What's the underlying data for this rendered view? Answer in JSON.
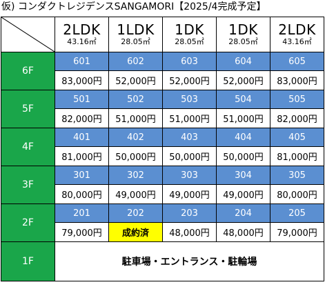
{
  "title": "仮) コンダクトレジデンスSANGAMORI【2025/4完成予定】",
  "columns": [
    {
      "type": "2LDK",
      "area": "43.16㎡"
    },
    {
      "type": "1LDK",
      "area": "28.05㎡"
    },
    {
      "type": "1DK",
      "area": "28.05㎡"
    },
    {
      "type": "1DK",
      "area": "28.05㎡"
    },
    {
      "type": "2LDK",
      "area": "43.16㎡"
    }
  ],
  "floors": [
    {
      "label": "6F",
      "rooms": [
        "601",
        "602",
        "603",
        "604",
        "605"
      ],
      "rents": [
        "83,000円",
        "52,000円",
        "52,000円",
        "52,000円",
        "83,000円"
      ]
    },
    {
      "label": "5F",
      "rooms": [
        "501",
        "502",
        "503",
        "504",
        "505"
      ],
      "rents": [
        "82,000円",
        "51,000円",
        "51,000円",
        "51,000円",
        "82,000円"
      ]
    },
    {
      "label": "4F",
      "rooms": [
        "401",
        "402",
        "403",
        "404",
        "405"
      ],
      "rents": [
        "81,000円",
        "50,000円",
        "50,000円",
        "50,000円",
        "81,000円"
      ]
    },
    {
      "label": "3F",
      "rooms": [
        "301",
        "302",
        "303",
        "304",
        "305"
      ],
      "rents": [
        "80,000円",
        "49,000円",
        "49,000円",
        "49,000円",
        "80,000円"
      ]
    },
    {
      "label": "2F",
      "rooms": [
        "201",
        "202",
        "203",
        "204",
        "205"
      ],
      "rents": [
        "79,000円",
        "成約済",
        "48,000円",
        "48,000円",
        "79,000円"
      ]
    }
  ],
  "ground": {
    "label": "1F",
    "text": "駐車場・エントランス・駐輪場"
  },
  "colors": {
    "floor_bg": "#1aa64a",
    "room_bg": "#5b8fd1",
    "sold_bg": "#ffff00"
  }
}
